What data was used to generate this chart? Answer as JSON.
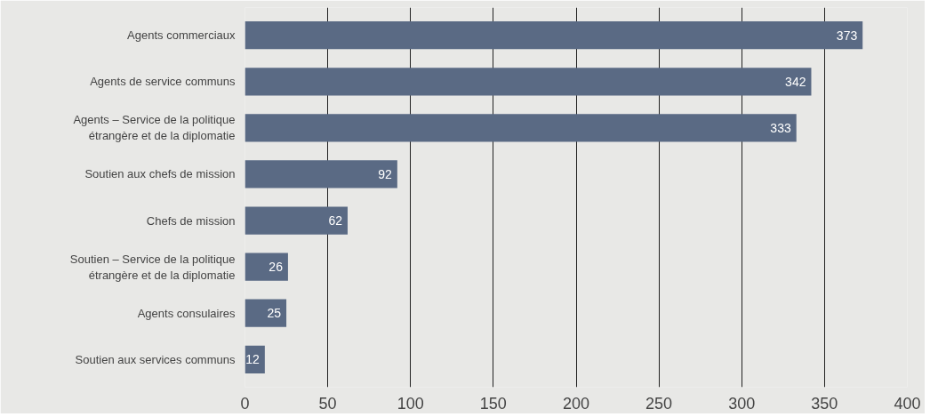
{
  "chart_data": {
    "type": "bar",
    "orientation": "horizontal",
    "categories": [
      "Agents commerciaux",
      "Agents de service communs",
      "Agents – Service de la politique étrangère et de la diplomatie",
      "Soutien aux chefs de mission",
      "Chefs de mission",
      "Soutien – Service de la politique étrangère et de la diplomatie",
      "Agents consulaires",
      "Soutien aux services communs"
    ],
    "values": [
      373,
      342,
      333,
      92,
      62,
      26,
      25,
      12
    ],
    "color": "#5a6a84",
    "xlim": [
      0,
      400
    ],
    "xticks": [
      0,
      50,
      100,
      150,
      200,
      250,
      300,
      350,
      400
    ],
    "grid": "x",
    "data_labels": true
  }
}
